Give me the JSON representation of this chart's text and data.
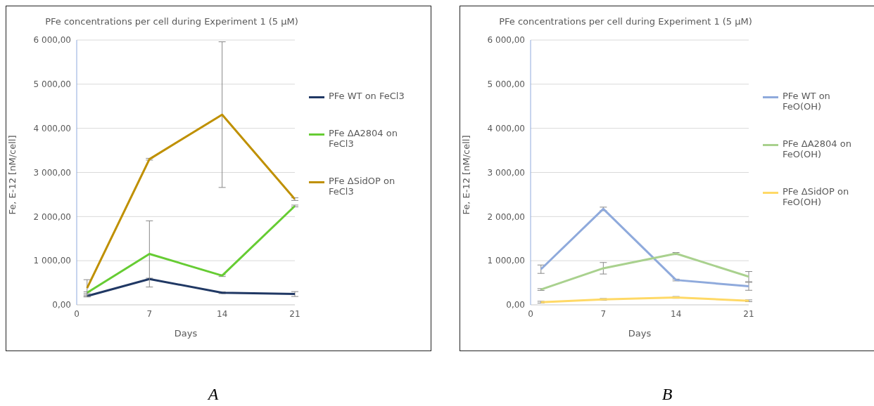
{
  "chart_data": [
    {
      "type": "line",
      "title": "PFe concentrations per cell during Experiment 1 (5 µM)",
      "xlabel": "Days",
      "ylabel": "Fe, E-12 [nM/cell]",
      "x": [
        1,
        7,
        14,
        21
      ],
      "series": [
        {
          "name": "PFe WT on FeCl3",
          "color": "#203864",
          "values": [
            200,
            585,
            275,
            245
          ],
          "errors": [
            20,
            20,
            20,
            55
          ]
        },
        {
          "name": "PFe ΔA2804 on FeCl3",
          "color": "#66cc33",
          "values": [
            274,
            1154,
            662,
            2240
          ],
          "errors": [
            20,
            750,
            20,
            20
          ]
        },
        {
          "name": "PFe ΔSidOP on FeCl3",
          "color": "#bf9000",
          "values": [
            380,
            3300,
            4310,
            2395
          ],
          "errors": [
            190,
            20,
            1650,
            30
          ]
        }
      ],
      "xlim": [
        0,
        21
      ],
      "xticks": [
        0,
        7,
        14,
        21
      ],
      "ylim": [
        0,
        6000
      ],
      "yticks": [
        {
          "value": 0,
          "label": "0,00"
        },
        {
          "value": 1000,
          "label": "1 000,00"
        },
        {
          "value": 2000,
          "label": "2 000,00"
        },
        {
          "value": 3000,
          "label": "3 000,00"
        },
        {
          "value": 4000,
          "label": "4 000,00"
        },
        {
          "value": 5000,
          "label": "5 000,00"
        },
        {
          "value": 6000,
          "label": "6 000,00"
        }
      ],
      "grid": "y",
      "legend": "right",
      "annotations": [
        "A"
      ]
    },
    {
      "type": "line",
      "title": "PFe concentrations per cell during Experiment 1 (5 µM)",
      "xlabel": "Days",
      "ylabel": "Fe, E-12 [nM/cell]",
      "x": [
        1,
        7,
        14,
        21
      ],
      "series": [
        {
          "name": "PFe WT on FeO(OH)",
          "color": "#8faadc",
          "values": [
            808,
            2174,
            563,
            420
          ],
          "errors": [
            95,
            40,
            20,
            90
          ]
        },
        {
          "name": "PFe ΔA2804 on FeO(OH)",
          "color": "#a9d18e",
          "values": [
            348,
            829,
            1161,
            640
          ],
          "errors": [
            20,
            130,
            25,
            115
          ]
        },
        {
          "name": "PFe ΔSidOP on FeO(OH)",
          "color": "#ffd966",
          "values": [
            61,
            123,
            169,
            92
          ],
          "errors": [
            20,
            20,
            20,
            20
          ]
        }
      ],
      "xlim": [
        0,
        21
      ],
      "xticks": [
        0,
        7,
        14,
        21
      ],
      "ylim": [
        0,
        6000
      ],
      "yticks": [
        {
          "value": 0,
          "label": "0,00"
        },
        {
          "value": 1000,
          "label": "1 000,00"
        },
        {
          "value": 2000,
          "label": "2 000,00"
        },
        {
          "value": 3000,
          "label": "3 000,00"
        },
        {
          "value": 4000,
          "label": "4 000,00"
        },
        {
          "value": 5000,
          "label": "5 000,00"
        },
        {
          "value": 6000,
          "label": "6 000,00"
        }
      ],
      "grid": "y",
      "legend": "right",
      "annotations": [
        "B"
      ]
    }
  ]
}
